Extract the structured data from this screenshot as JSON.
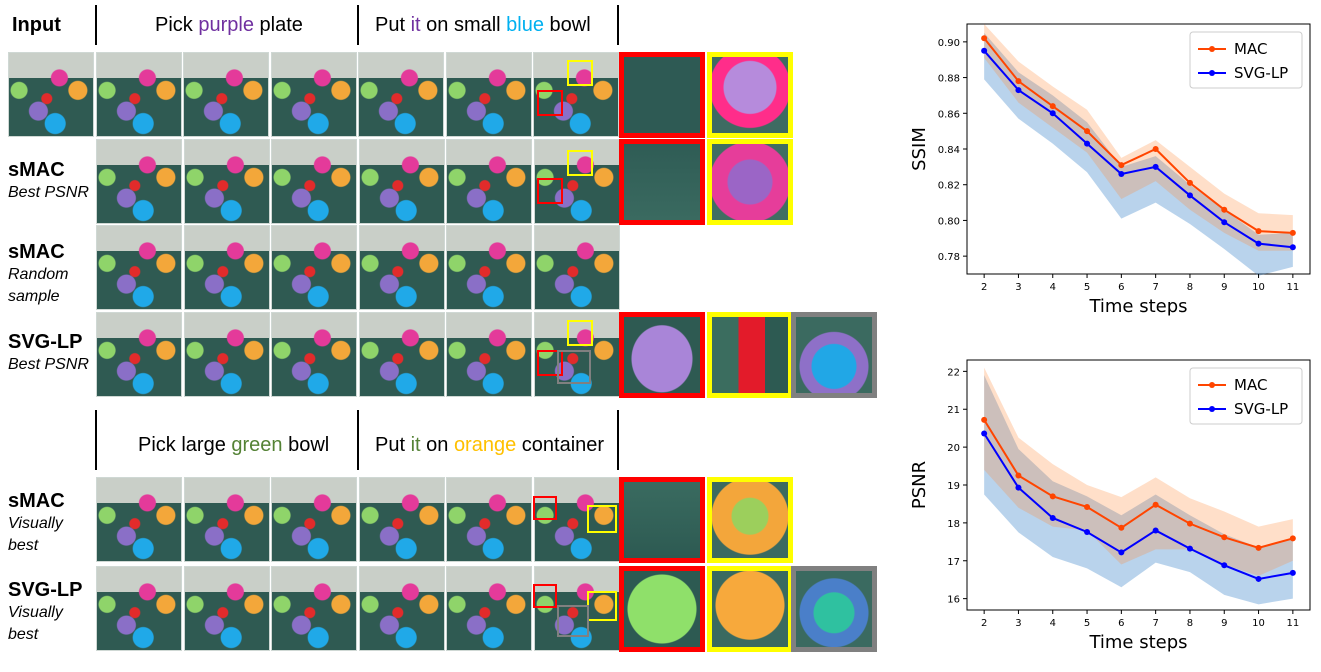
{
  "figure": {
    "top_header": {
      "input_label": "Input",
      "pick_prefix": "Pick ",
      "pick_color": "purple",
      "pick_suffix": " plate",
      "put_prefix": "Put ",
      "put_it": "it",
      "put_mid": " on small ",
      "put_color": "blue",
      "put_suffix": " bowl"
    },
    "bottom_header": {
      "pick_prefix": "Pick large ",
      "pick_color": "green",
      "pick_suffix": " bowl",
      "put_prefix": "Put ",
      "put_it": "it",
      "put_mid": " on ",
      "put_color": "orange",
      "put_suffix": " container"
    },
    "row_labels": [
      {
        "name": "sMAC",
        "sub": "Best PSNR"
      },
      {
        "name": "sMAC",
        "sub": "Random\nsample"
      },
      {
        "name": "SVG-LP",
        "sub": "Best PSNR"
      },
      {
        "name": "sMAC",
        "sub": "Visually\nbest"
      },
      {
        "name": "SVG-LP",
        "sub": "Visually\nbest"
      }
    ],
    "colors": {
      "purple": "#7030a0",
      "blue": "#00b0f0",
      "green": "#548235",
      "orange": "#ffc000",
      "it_color_top": "#7030a0",
      "it_color_bottom": "#548235",
      "box_red": "#ff0000",
      "box_yellow": "#ffff00",
      "box_gray": "#808080"
    }
  },
  "chart_data": [
    {
      "type": "line",
      "x": [
        2,
        3,
        4,
        5,
        6,
        7,
        8,
        9,
        10,
        11
      ],
      "xlabel": "Time steps",
      "ylabel": "SSIM",
      "ylim": [
        0.77,
        0.91
      ],
      "yticks": [
        0.78,
        0.8,
        0.82,
        0.84,
        0.86,
        0.88,
        0.9
      ],
      "ytick_labels": [
        "0.78",
        "0.80",
        "0.82",
        "0.84",
        "0.86",
        "0.88",
        "0.90"
      ],
      "legend_position": "top-right",
      "series": [
        {
          "name": "MAC",
          "color": "#ff4500",
          "values": [
            0.902,
            0.878,
            0.864,
            0.85,
            0.831,
            0.84,
            0.821,
            0.806,
            0.794,
            0.793
          ],
          "band_low": [
            0.891,
            0.866,
            0.852,
            0.838,
            0.812,
            0.822,
            0.806,
            0.793,
            0.783,
            0.783
          ],
          "band_high": [
            0.91,
            0.889,
            0.875,
            0.862,
            0.835,
            0.845,
            0.83,
            0.815,
            0.804,
            0.803
          ]
        },
        {
          "name": "SVG-LP",
          "color": "#0000ff",
          "values": [
            0.895,
            0.873,
            0.86,
            0.843,
            0.826,
            0.83,
            0.814,
            0.799,
            0.787,
            0.785
          ],
          "band_low": [
            0.879,
            0.857,
            0.843,
            0.827,
            0.801,
            0.81,
            0.798,
            0.784,
            0.769,
            0.774
          ],
          "band_high": [
            0.905,
            0.883,
            0.87,
            0.855,
            0.83,
            0.836,
            0.82,
            0.806,
            0.792,
            0.793
          ]
        }
      ]
    },
    {
      "type": "line",
      "x": [
        2,
        3,
        4,
        5,
        6,
        7,
        8,
        9,
        10,
        11
      ],
      "xlabel": "Time steps",
      "ylabel": "PSNR",
      "ylim": [
        15.7,
        22.3
      ],
      "yticks": [
        16,
        17,
        18,
        19,
        20,
        21,
        22
      ],
      "ytick_labels": [
        "16",
        "17",
        "18",
        "19",
        "20",
        "21",
        "22"
      ],
      "legend_position": "top-right",
      "series": [
        {
          "name": "MAC",
          "color": "#ff4500",
          "values": [
            20.72,
            19.25,
            18.7,
            18.42,
            17.87,
            18.48,
            17.98,
            17.62,
            17.34,
            17.59
          ],
          "band_low": [
            19.4,
            18.4,
            17.9,
            17.8,
            16.9,
            17.3,
            17.3,
            16.9,
            16.6,
            17.0
          ],
          "band_high": [
            22.1,
            20.25,
            19.55,
            19.0,
            18.68,
            19.2,
            18.65,
            18.3,
            17.9,
            18.1
          ]
        },
        {
          "name": "SVG-LP",
          "color": "#0000ff",
          "values": [
            20.36,
            18.93,
            18.13,
            17.76,
            17.22,
            17.8,
            17.32,
            16.88,
            16.52,
            16.68
          ],
          "band_low": [
            18.75,
            17.75,
            17.1,
            16.8,
            16.3,
            16.95,
            16.7,
            16.1,
            15.85,
            16.0
          ],
          "band_high": [
            21.9,
            19.95,
            19.1,
            18.7,
            18.2,
            18.75,
            18.2,
            17.7,
            17.35,
            17.6
          ]
        }
      ]
    }
  ]
}
